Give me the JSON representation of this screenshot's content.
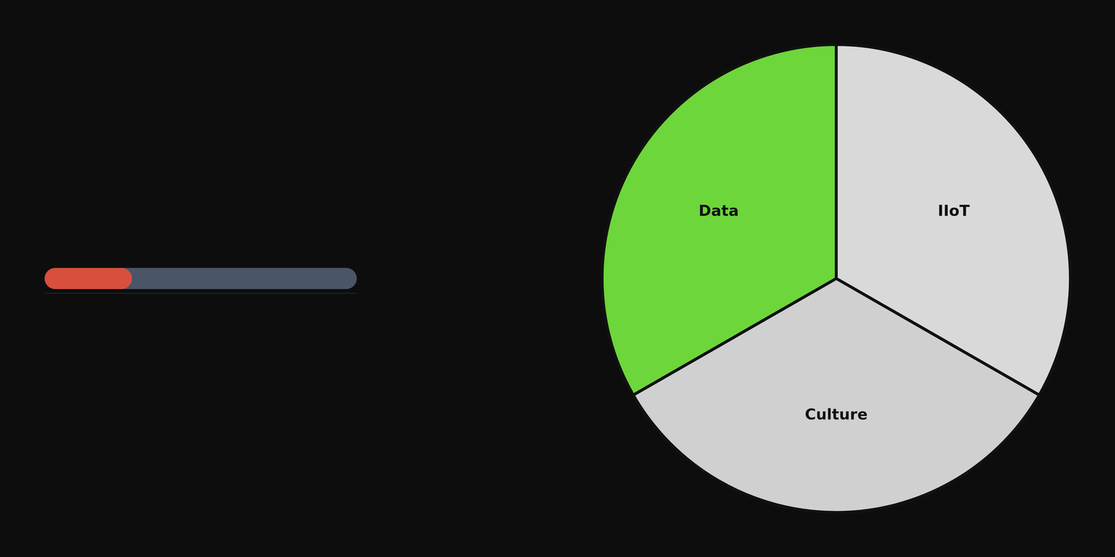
{
  "chart_data": [
    {
      "type": "pie",
      "categories": [
        "IIoT",
        "Culture",
        "Data"
      ],
      "values": [
        0.333,
        0.334,
        0.333
      ],
      "colors": [
        "#d9d9d9",
        "#d0d0d0",
        "#6dd63b"
      ]
    },
    {
      "type": "bar",
      "orientation": "horizontal",
      "values": [
        0.28
      ],
      "color": "#d94f3d",
      "xlim": [
        0,
        1
      ],
      "tick_labels": false
    }
  ]
}
